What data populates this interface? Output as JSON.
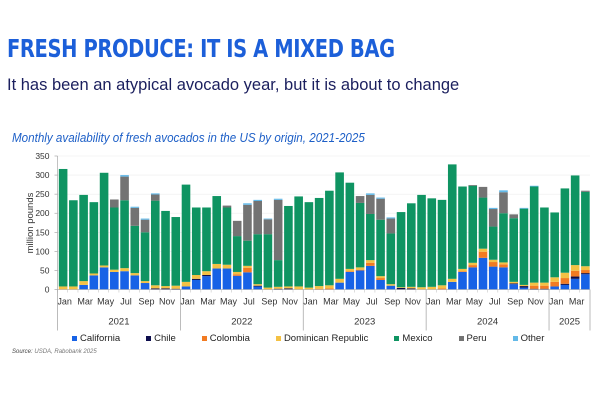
{
  "header": {
    "title": "FRESH PRODUCE: IT IS A MIXED BAG",
    "subtitle": "It has been an atypical avocado year, but it is about to change"
  },
  "source": {
    "label": "Source:",
    "value": "USDA, Rabobank 2025"
  },
  "chart_data": {
    "type": "bar",
    "stacked": true,
    "title": "Monthly availability of fresh avocados in the US by origin, 2021-2025",
    "xlabel": "",
    "ylabel": "million pounds",
    "ylim": [
      0,
      350
    ],
    "yticks": [
      0,
      50,
      100,
      150,
      200,
      250,
      300,
      350
    ],
    "grid": true,
    "legend_position": "bottom",
    "month_tick_labels": [
      "Jan",
      "Mar",
      "May",
      "Jul",
      "Sep",
      "Nov"
    ],
    "years": [
      {
        "label": "2021",
        "months": 12
      },
      {
        "label": "2022",
        "months": 12
      },
      {
        "label": "2023",
        "months": 12
      },
      {
        "label": "2024",
        "months": 12
      },
      {
        "label": "2025",
        "months": 4
      }
    ],
    "categories": [
      "Jan 2021",
      "Feb 2021",
      "Mar 2021",
      "Apr 2021",
      "May 2021",
      "Jun 2021",
      "Jul 2021",
      "Aug 2021",
      "Sep 2021",
      "Oct 2021",
      "Nov 2021",
      "Dec 2021",
      "Jan 2022",
      "Feb 2022",
      "Mar 2022",
      "Apr 2022",
      "May 2022",
      "Jun 2022",
      "Jul 2022",
      "Aug 2022",
      "Sep 2022",
      "Oct 2022",
      "Nov 2022",
      "Dec 2022",
      "Jan 2023",
      "Feb 2023",
      "Mar 2023",
      "Apr 2023",
      "May 2023",
      "Jun 2023",
      "Jul 2023",
      "Aug 2023",
      "Sep 2023",
      "Oct 2023",
      "Nov 2023",
      "Dec 2023",
      "Jan 2024",
      "Feb 2024",
      "Mar 2024",
      "Apr 2024",
      "May 2024",
      "Jun 2024",
      "Jul 2024",
      "Aug 2024",
      "Sep 2024",
      "Oct 2024",
      "Nov 2024",
      "Dec 2024",
      "Jan 2025",
      "Feb 2025",
      "Mar 2025",
      "Apr 2025"
    ],
    "series": [
      {
        "name": "California",
        "color": "#1762e6",
        "values": [
          0,
          0,
          12,
          37,
          58,
          46,
          48,
          37,
          17,
          0,
          0,
          0,
          8,
          25,
          35,
          55,
          55,
          36,
          45,
          8,
          0,
          0,
          0,
          0,
          0,
          0,
          0,
          18,
          46,
          50,
          62,
          25,
          10,
          0,
          0,
          0,
          0,
          0,
          20,
          46,
          58,
          83,
          60,
          58,
          14,
          5,
          0,
          0,
          8,
          12,
          28,
          40
        ]
      },
      {
        "name": "Chile",
        "color": "#0d0d4d",
        "values": [
          0,
          0,
          0,
          0,
          0,
          0,
          0,
          0,
          0,
          3,
          3,
          2,
          0,
          3,
          3,
          0,
          0,
          0,
          0,
          2,
          0,
          2,
          3,
          0,
          0,
          0,
          0,
          0,
          0,
          0,
          0,
          0,
          0,
          4,
          3,
          0,
          0,
          0,
          0,
          0,
          0,
          0,
          0,
          0,
          2,
          4,
          2,
          2,
          0,
          3,
          6,
          3
        ]
      },
      {
        "name": "Colombia",
        "color": "#f27b22",
        "values": [
          0,
          0,
          0,
          0,
          0,
          0,
          0,
          0,
          0,
          0,
          0,
          0,
          0,
          0,
          0,
          0,
          0,
          4,
          12,
          0,
          0,
          0,
          0,
          0,
          0,
          2,
          3,
          0,
          2,
          2,
          8,
          5,
          0,
          0,
          0,
          0,
          0,
          3,
          0,
          2,
          6,
          16,
          12,
          8,
          0,
          0,
          8,
          8,
          12,
          15,
          15,
          8
        ]
      },
      {
        "name": "Dominican Republic",
        "color": "#f4c144",
        "values": [
          8,
          8,
          10,
          5,
          5,
          6,
          8,
          6,
          5,
          8,
          6,
          8,
          12,
          10,
          10,
          12,
          10,
          6,
          5,
          4,
          5,
          5,
          5,
          8,
          5,
          7,
          8,
          10,
          6,
          6,
          7,
          5,
          4,
          2,
          4,
          6,
          7,
          8,
          8,
          6,
          6,
          8,
          6,
          5,
          4,
          3,
          8,
          8,
          12,
          14,
          15,
          10
        ]
      },
      {
        "name": "Mexico",
        "color": "#0f9462",
        "values": [
          308,
          226,
          226,
          187,
          243,
          163,
          178,
          124,
          128,
          222,
          197,
          180,
          255,
          177,
          167,
          178,
          150,
          94,
          66,
          131,
          140,
          70,
          211,
          236,
          224,
          231,
          248,
          279,
          226,
          169,
          121,
          148,
          133,
          197,
          219,
          242,
          232,
          224,
          300,
          216,
          202,
          134,
          87,
          129,
          167,
          200,
          252,
          197,
          170,
          221,
          235,
          195
        ]
      },
      {
        "name": "Peru",
        "color": "#737373",
        "values": [
          0,
          0,
          0,
          0,
          0,
          21,
          62,
          47,
          33,
          16,
          0,
          0,
          0,
          0,
          0,
          0,
          5,
          40,
          94,
          87,
          39,
          158,
          0,
          0,
          0,
          0,
          0,
          0,
          0,
          18,
          50,
          55,
          39,
          0,
          0,
          0,
          0,
          0,
          0,
          0,
          2,
          28,
          46,
          55,
          10,
          0,
          0,
          0,
          0,
          0,
          0,
          3
        ]
      },
      {
        "name": "Other",
        "color": "#63b9e8",
        "values": [
          0,
          0,
          0,
          0,
          0,
          0,
          4,
          3,
          3,
          3,
          0,
          0,
          0,
          0,
          0,
          0,
          0,
          0,
          4,
          3,
          2,
          3,
          0,
          0,
          0,
          0,
          0,
          0,
          0,
          0,
          4,
          3,
          3,
          0,
          0,
          0,
          0,
          0,
          0,
          0,
          0,
          0,
          3,
          5,
          0,
          2,
          2,
          0,
          0,
          0,
          0,
          0
        ]
      }
    ]
  }
}
